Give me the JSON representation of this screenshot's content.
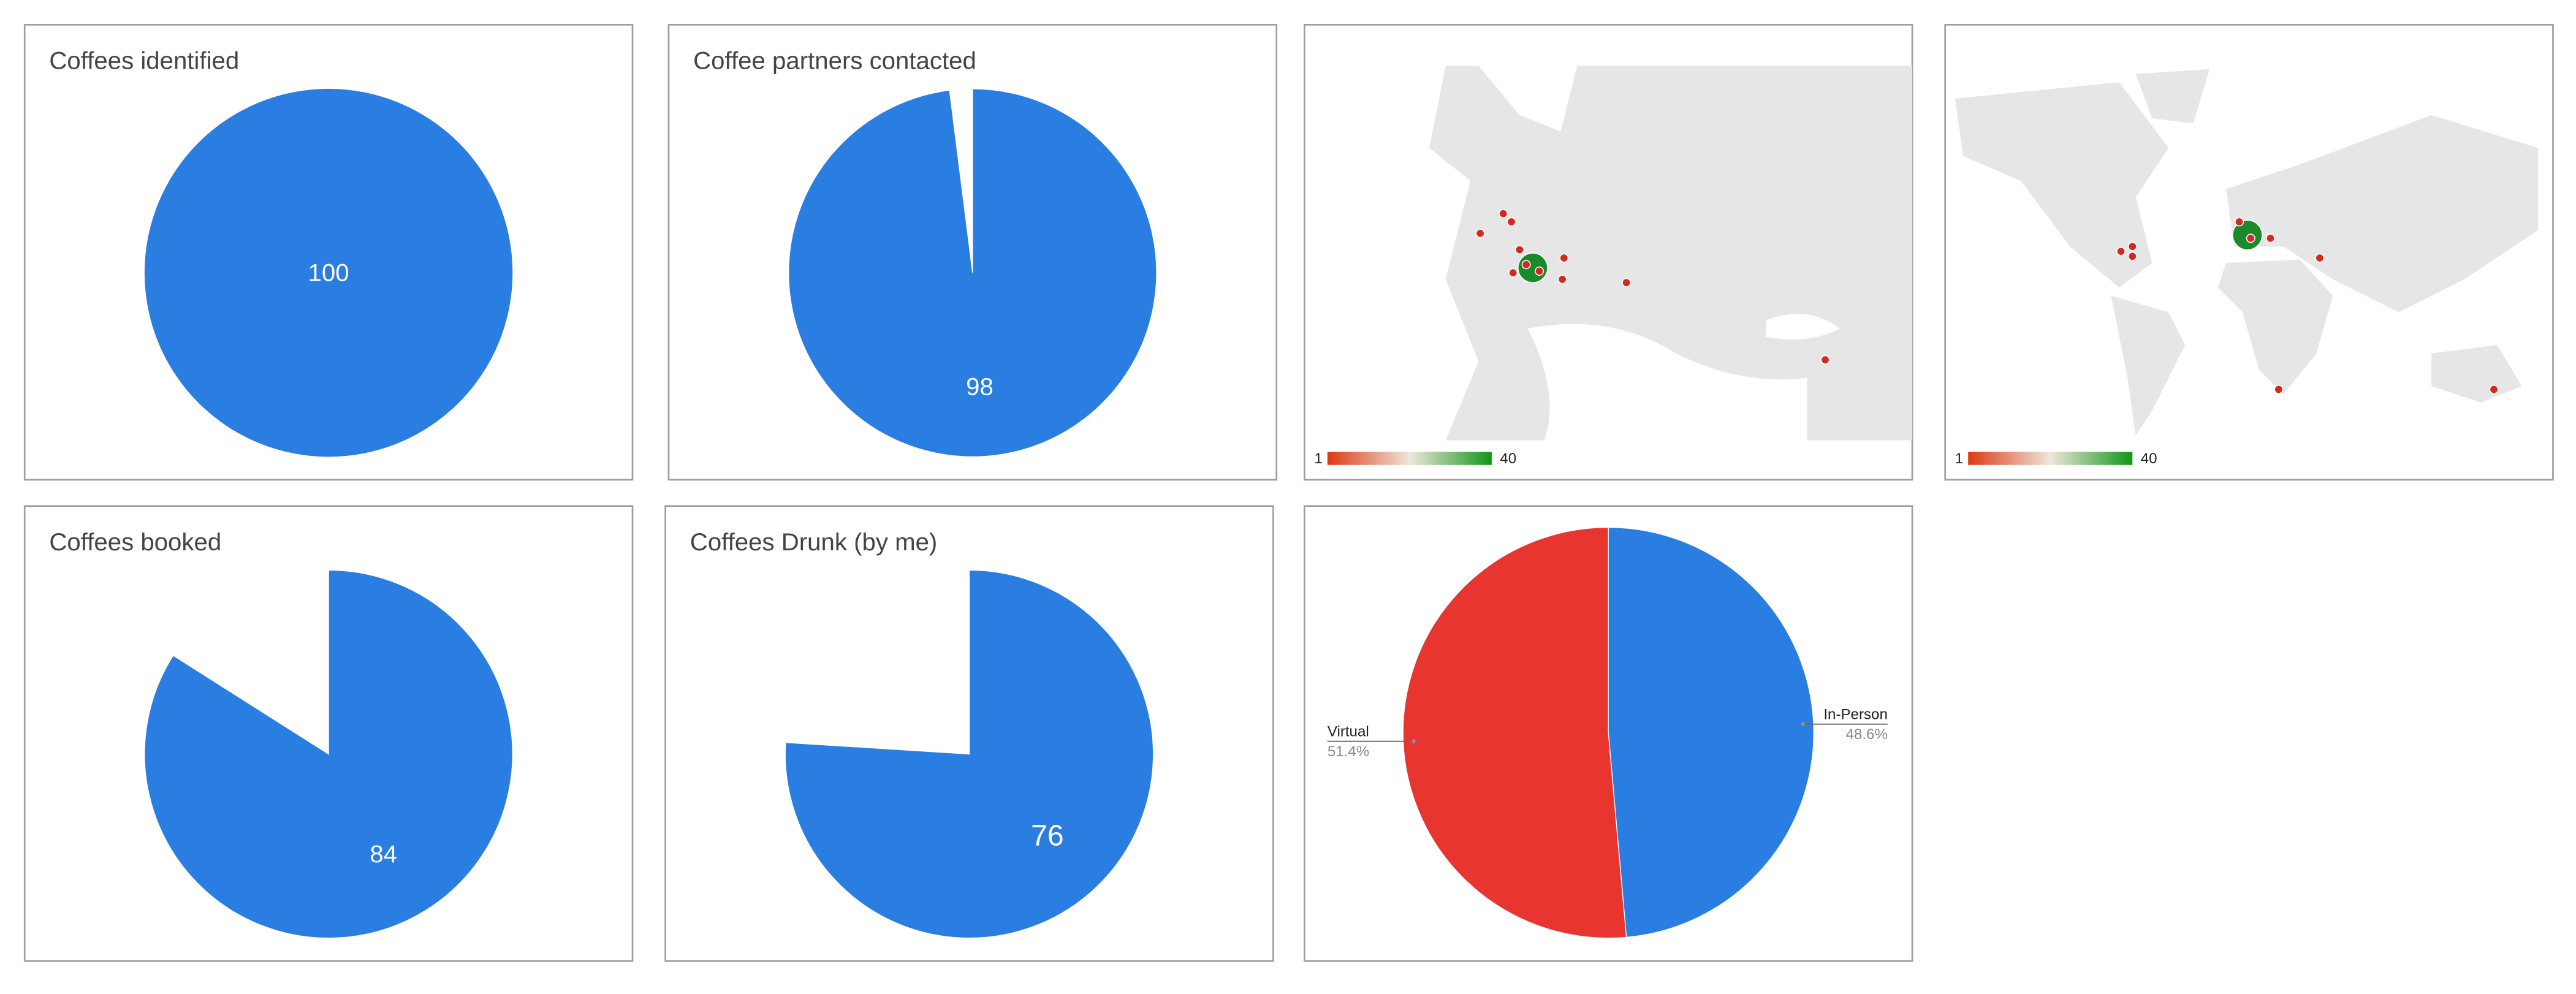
{
  "chart_data": [
    {
      "type": "pie",
      "title": "Coffees identified",
      "values": [
        100
      ],
      "colors": [
        "#2a7de1"
      ]
    },
    {
      "type": "pie",
      "title": "Coffee partners contacted",
      "values": [
        98,
        2
      ],
      "colors": [
        "#2a7de1",
        "none"
      ]
    },
    {
      "type": "geo",
      "colorAxis": {
        "minValue": 1,
        "maxValue": 40,
        "colors": [
          "#dc3912",
          "#efe6dc",
          "#109618"
        ]
      }
    },
    {
      "type": "geo",
      "colorAxis": {
        "minValue": 1,
        "maxValue": 40,
        "colors": [
          "#dc3912",
          "#efe6dc",
          "#109618"
        ]
      }
    },
    {
      "type": "pie",
      "title": "Coffees booked",
      "values": [
        84,
        16
      ],
      "colors": [
        "#2a7de1",
        "none"
      ]
    },
    {
      "type": "pie",
      "title": "Coffees Drunk (by me)",
      "values": [
        76,
        24
      ],
      "colors": [
        "#2a7de1",
        "none"
      ]
    },
    {
      "type": "pie",
      "categories": [
        "In-Person",
        "Virtual"
      ],
      "values": [
        48.6,
        51.4
      ],
      "value_labels": [
        "48.6%",
        "51.4%"
      ],
      "colors": [
        "#2a7de1",
        "#e8352f"
      ],
      "legend": "labeled"
    }
  ]
}
